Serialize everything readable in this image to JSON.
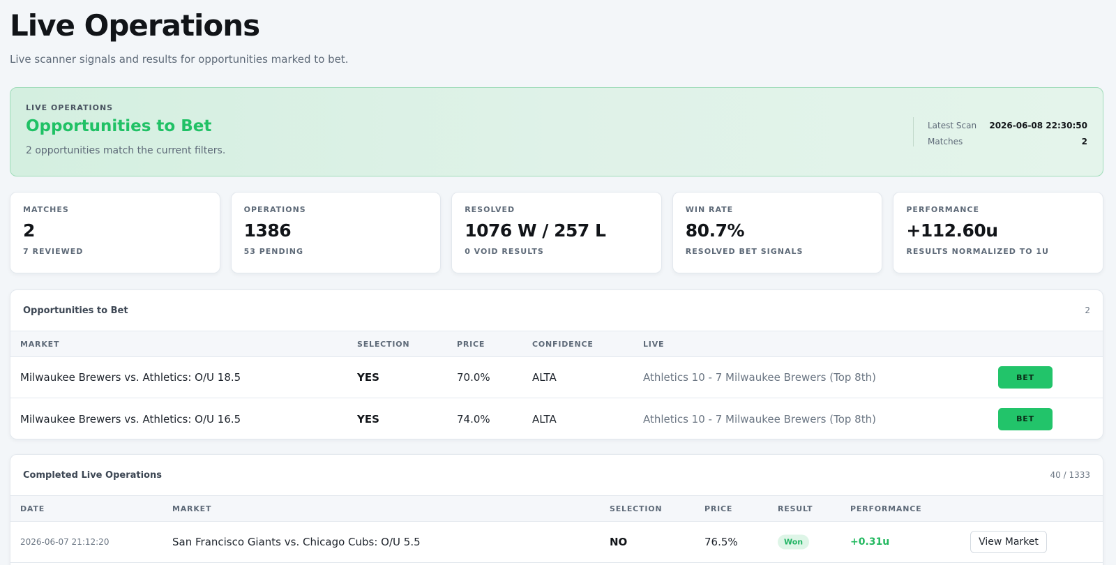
{
  "header": {
    "title": "Live Operations",
    "subtitle": "Live scanner signals and results for opportunities marked to bet."
  },
  "hero": {
    "eyebrow": "LIVE OPERATIONS",
    "title": "Opportunities to Bet",
    "subtitle": "2 opportunities match the current filters.",
    "latest_scan_label": "Latest Scan",
    "latest_scan_value": "2026-06-08 22:30:50",
    "matches_label": "Matches",
    "matches_value": "2"
  },
  "stats": [
    {
      "label": "MATCHES",
      "value": "2",
      "sub": "7 REVIEWED"
    },
    {
      "label": "OPERATIONS",
      "value": "1386",
      "sub": "53 PENDING"
    },
    {
      "label": "RESOLVED",
      "value": "1076 W / 257 L",
      "sub": "0 VOID RESULTS"
    },
    {
      "label": "WIN RATE",
      "value": "80.7%",
      "sub": "RESOLVED BET SIGNALS"
    },
    {
      "label": "PERFORMANCE",
      "value": "+112.60u",
      "sub": "RESULTS NORMALIZED TO 1U"
    }
  ],
  "opportunities": {
    "title": "Opportunities to Bet",
    "count": "2",
    "columns": {
      "market": "MARKET",
      "selection": "SELECTION",
      "price": "PRICE",
      "confidence": "CONFIDENCE",
      "live": "LIVE"
    },
    "rows": [
      {
        "market": "Milwaukee Brewers vs. Athletics: O/U 18.5",
        "selection": "YES",
        "price": "70.0%",
        "confidence": "ALTA",
        "live": "Athletics 10 - 7 Milwaukee Brewers (Top 8th)",
        "action": "BET"
      },
      {
        "market": "Milwaukee Brewers vs. Athletics: O/U 16.5",
        "selection": "YES",
        "price": "74.0%",
        "confidence": "ALTA",
        "live": "Athletics 10 - 7 Milwaukee Brewers (Top 8th)",
        "action": "BET"
      }
    ]
  },
  "completed": {
    "title": "Completed Live Operations",
    "count": "40 / 1333",
    "columns": {
      "date": "DATE",
      "market": "MARKET",
      "selection": "SELECTION",
      "price": "PRICE",
      "result": "RESULT",
      "performance": "PERFORMANCE"
    },
    "rows": [
      {
        "date": "2026-06-07 21:12:20",
        "market": "San Francisco Giants vs. Chicago Cubs: O/U 5.5",
        "selection": "NO",
        "price": "76.5%",
        "result": "Won",
        "performance": "+0.31u",
        "action": "View Market"
      }
    ]
  },
  "colors": {
    "accent_green": "#22c46a",
    "hero_bg": "#d4efe0",
    "text_dark": "#111418",
    "text_muted": "#5e6a78"
  }
}
